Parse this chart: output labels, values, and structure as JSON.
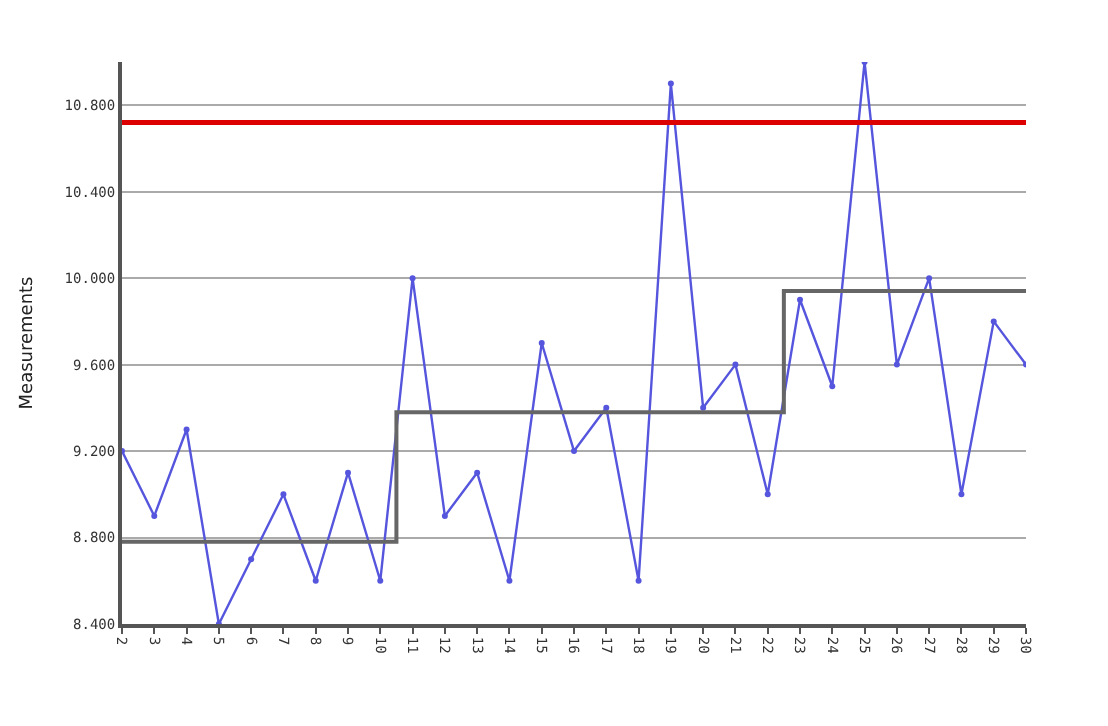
{
  "chart_data": {
    "type": "line",
    "ylabel": "Measurements",
    "x": [
      2,
      3,
      4,
      5,
      6,
      7,
      8,
      9,
      10,
      11,
      12,
      13,
      14,
      15,
      16,
      17,
      18,
      19,
      20,
      21,
      22,
      23,
      24,
      25,
      26,
      27,
      28,
      29,
      30
    ],
    "series": [
      {
        "color": "#5555dd",
        "marker": "circle",
        "values": [
          9.2,
          8.9,
          9.3,
          8.4,
          8.7,
          9.0,
          8.6,
          9.1,
          8.6,
          10.0,
          8.9,
          9.1,
          8.6,
          9.7,
          9.2,
          9.4,
          8.6,
          10.9,
          9.4,
          9.6,
          9.0,
          9.9,
          9.5,
          11.0,
          9.6,
          10.0,
          9.0,
          9.8,
          9.6
        ]
      },
      {
        "type": "line",
        "marker": "none",
        "color": "#666666",
        "x": [
          2,
          10.5,
          10.5,
          22.5,
          22.5,
          30
        ],
        "values": [
          8.78,
          8.78,
          9.38,
          9.38,
          9.94,
          9.94
        ]
      }
    ],
    "ref_lines": [
      {
        "axis": "y",
        "value": 10.72,
        "color": "#dd0000"
      }
    ],
    "xlim": [
      2,
      30
    ],
    "xticks": [
      2,
      3,
      4,
      5,
      6,
      7,
      8,
      9,
      10,
      11,
      12,
      13,
      14,
      15,
      16,
      17,
      18,
      19,
      20,
      21,
      22,
      23,
      24,
      25,
      26,
      27,
      28,
      29,
      30
    ],
    "ylim": [
      8.4,
      11.0
    ],
    "yticks": [
      {
        "value": 8.4,
        "label": "8.400"
      },
      {
        "value": 8.8,
        "label": "8.800"
      },
      {
        "value": 9.2,
        "label": "9.200"
      },
      {
        "value": 9.6,
        "label": "9.600"
      },
      {
        "value": 10.0,
        "label": "10.000"
      },
      {
        "value": 10.4,
        "label": "10.400"
      },
      {
        "value": 10.8,
        "label": "10.800"
      }
    ],
    "grid": "y"
  }
}
